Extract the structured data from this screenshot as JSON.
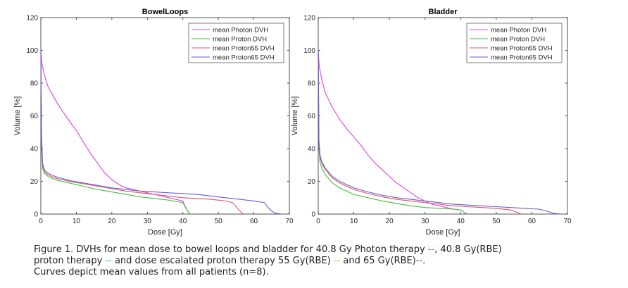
{
  "chart_data": [
    {
      "type": "line",
      "title": "BowelLoops",
      "xlabel": "Dose [Gy]",
      "ylabel": "Volume [%]",
      "xlim": [
        0,
        70
      ],
      "ylim": [
        0,
        120
      ],
      "xticks": [
        0,
        10,
        20,
        30,
        40,
        50,
        60,
        70
      ],
      "yticks": [
        0,
        20,
        40,
        60,
        80,
        100,
        120
      ],
      "grid": false,
      "legend_position": "top-right",
      "series": [
        {
          "name": "mean Photon DVH",
          "color": "#e040e0",
          "x": [
            0,
            0.3,
            1,
            2,
            4,
            6,
            8,
            10,
            12,
            14,
            16,
            18,
            20,
            22,
            24,
            26,
            28,
            30,
            32,
            34,
            36,
            38,
            40,
            41,
            42
          ],
          "y": [
            100,
            92,
            85,
            78,
            70,
            63,
            57,
            51,
            44,
            37,
            31,
            25,
            21,
            18,
            16,
            15,
            14,
            13,
            12,
            11,
            10,
            9,
            8,
            3,
            0
          ]
        },
        {
          "name": "mean Proton DVH",
          "color": "#40c040",
          "x": [
            0,
            0.2,
            0.5,
            1,
            2,
            4,
            8,
            12,
            16,
            20,
            24,
            28,
            32,
            36,
            40,
            41,
            42
          ],
          "y": [
            100,
            40,
            28,
            25,
            23,
            21,
            19,
            17,
            15,
            13.5,
            12,
            10.5,
            9.5,
            8.5,
            7,
            3,
            0
          ]
        },
        {
          "name": "mean Proton55 DVH",
          "color": "#e85060",
          "x": [
            0,
            0.2,
            0.5,
            1,
            2,
            4,
            8,
            12,
            16,
            20,
            24,
            28,
            32,
            36,
            40,
            44,
            48,
            52,
            54,
            56,
            57
          ],
          "y": [
            100,
            45,
            30,
            26,
            24,
            22,
            20,
            18.5,
            17,
            15.5,
            14,
            13,
            12,
            11,
            10,
            9.5,
            9,
            8,
            7,
            2,
            0
          ]
        },
        {
          "name": "mean Proton65 DVH",
          "color": "#6060d8",
          "x": [
            0,
            0.2,
            0.5,
            1,
            2,
            4,
            8,
            12,
            16,
            20,
            24,
            28,
            32,
            36,
            40,
            44,
            48,
            52,
            56,
            60,
            63,
            64,
            65,
            66,
            68
          ],
          "y": [
            100,
            48,
            31,
            27,
            25,
            23,
            20.5,
            19,
            17.5,
            16,
            15,
            14,
            13.5,
            13,
            12.5,
            12,
            11,
            10,
            9,
            8,
            7,
            4,
            2,
            0.5,
            0
          ]
        }
      ]
    },
    {
      "type": "line",
      "title": "Bladder",
      "xlabel": "Dose [Gy]",
      "ylabel": "Volume [%]",
      "xlim": [
        0,
        70
      ],
      "ylim": [
        0,
        120
      ],
      "xticks": [
        0,
        10,
        20,
        30,
        40,
        50,
        60,
        70
      ],
      "yticks": [
        0,
        20,
        40,
        60,
        80,
        100,
        120
      ],
      "grid": false,
      "legend_position": "top-right",
      "series": [
        {
          "name": "mean Photon DVH",
          "color": "#e040e0",
          "x": [
            0,
            0.3,
            1,
            2,
            4,
            6,
            8,
            10,
            12,
            14,
            16,
            18,
            20,
            22,
            24,
            26,
            28,
            30,
            32,
            34,
            36,
            38,
            40,
            41,
            42
          ],
          "y": [
            100,
            90,
            82,
            74,
            65,
            58,
            52,
            47,
            42,
            36,
            31,
            27,
            23,
            19,
            16,
            13,
            10,
            8,
            6,
            5,
            4,
            3,
            2.5,
            1,
            0
          ]
        },
        {
          "name": "mean Proton DVH",
          "color": "#40c040",
          "x": [
            0,
            0.2,
            0.5,
            1,
            2,
            4,
            6,
            8,
            10,
            14,
            18,
            22,
            26,
            30,
            34,
            38,
            40,
            41,
            42
          ],
          "y": [
            100,
            40,
            32,
            28,
            24,
            19,
            16,
            14,
            12,
            10,
            8,
            6.5,
            5,
            4,
            3.5,
            3,
            2.5,
            1,
            0
          ]
        },
        {
          "name": "mean Proton55 DVH",
          "color": "#e85060",
          "x": [
            0,
            0.2,
            0.5,
            1,
            2,
            4,
            6,
            8,
            10,
            14,
            18,
            22,
            26,
            30,
            34,
            38,
            42,
            46,
            50,
            54,
            56,
            57
          ],
          "y": [
            100,
            43,
            35,
            31,
            27,
            22,
            19,
            17,
            15,
            12.5,
            10.5,
            9,
            8,
            7,
            6,
            5,
            4.5,
            4,
            3.5,
            2.5,
            1,
            0
          ]
        },
        {
          "name": "mean Proton65 DVH",
          "color": "#6060d8",
          "x": [
            0,
            0.2,
            0.5,
            1,
            2,
            4,
            6,
            8,
            10,
            14,
            18,
            22,
            26,
            30,
            34,
            38,
            42,
            46,
            50,
            54,
            58,
            62,
            64,
            66,
            68
          ],
          "y": [
            100,
            45,
            36,
            32,
            28,
            23,
            20,
            18,
            16,
            13.5,
            11.5,
            10,
            9,
            8,
            7,
            6,
            5.5,
            5,
            4.5,
            4,
            3.5,
            3,
            2,
            0.5,
            0
          ]
        }
      ]
    }
  ],
  "caption": {
    "line1_a": "Figure 1. DVHs for mean dose to bowel loops and bladder for 40.8 Gy Photon therapy ",
    "line1_mark": "--",
    "line1_b": ", 40.8 Gy(RBE)",
    "line2_a": "proton therapy ",
    "line2_mark": "--",
    "line2_b": " and dose escalated proton therapy 55 Gy(RBE) ",
    "line2_mark2": "--",
    "line2_c": " and 65 Gy(RBE)",
    "line2_mark3": "--",
    "line2_d": ".",
    "line3": "Curves depict mean values from all patients (n=8)."
  }
}
